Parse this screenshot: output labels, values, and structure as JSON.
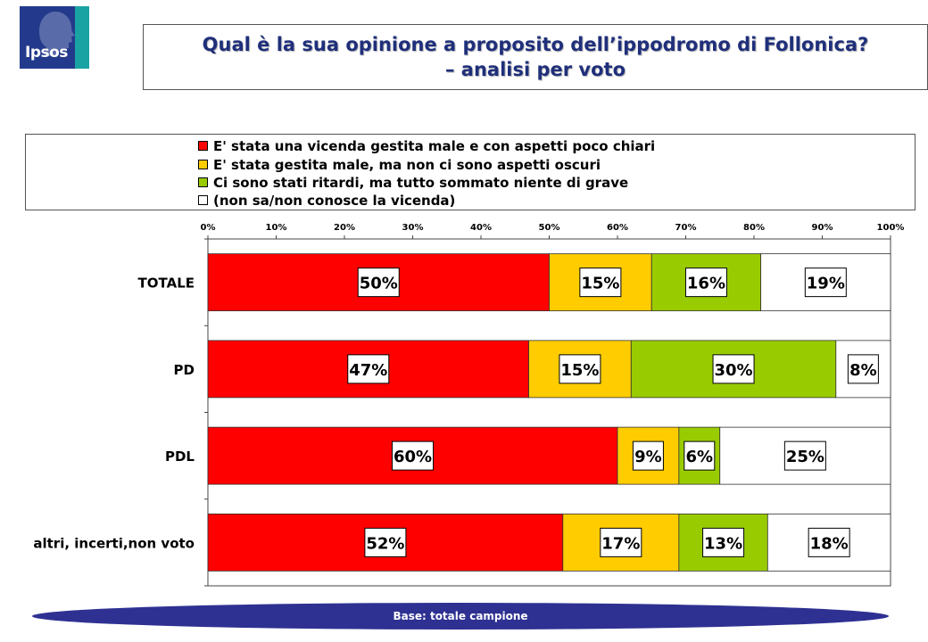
{
  "logo": {
    "text": "Ipsos"
  },
  "title": {
    "line1": "Qual è la sua opinione a proposito dell’ippodromo di Follonica?",
    "line2": "– analisi per voto"
  },
  "footer": {
    "text": "Base: totale campione"
  },
  "colors": {
    "red": "#ff0000",
    "yellow": "#ffcc00",
    "green": "#99cc00",
    "white": "#ffffff",
    "navy": "#2e3192",
    "titleBlue": "#1f2f7a"
  },
  "chart_data": {
    "type": "bar",
    "orientation": "horizontal",
    "stacked": true,
    "percent": true,
    "xlim": [
      0,
      100
    ],
    "x_ticks": [
      "0%",
      "10%",
      "20%",
      "30%",
      "40%",
      "50%",
      "60%",
      "70%",
      "80%",
      "90%",
      "100%"
    ],
    "tick_position": "top",
    "legend_position": "top",
    "categories": [
      "TOTALE",
      "PD",
      "PDL",
      "altri, incerti,non voto"
    ],
    "series": [
      {
        "name": "E' stata una vicenda gestita male e con aspetti poco chiari",
        "color": "#ff0000",
        "values": [
          50,
          47,
          60,
          52
        ]
      },
      {
        "name": "E' stata gestita male, ma non ci sono aspetti oscuri",
        "color": "#ffcc00",
        "values": [
          15,
          15,
          9,
          17
        ]
      },
      {
        "name": "Ci sono stati ritardi, ma tutto sommato niente di grave",
        "color": "#99cc00",
        "values": [
          16,
          30,
          6,
          13
        ]
      },
      {
        "name": "(non sa/non conosce la vicenda)",
        "color": "#ffffff",
        "values": [
          19,
          8,
          25,
          18
        ]
      }
    ]
  }
}
